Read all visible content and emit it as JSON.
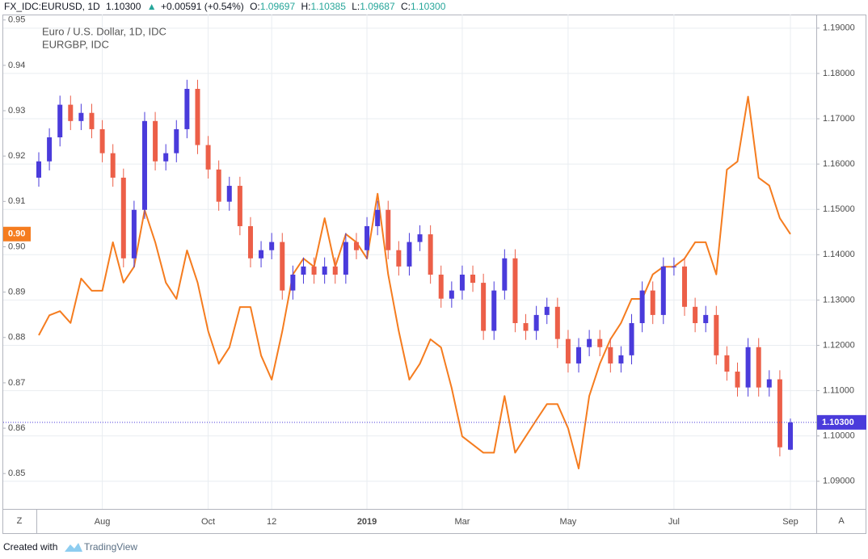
{
  "chart_data": {
    "type": "candlestick",
    "header": {
      "symbol": "FX_IDC:EURUSD, 1D",
      "last": "1.10300",
      "arrow": "▲",
      "change": "+0.00591 (+0.54%)",
      "ohlc": [
        {
          "label": "O:",
          "value": "1.09697"
        },
        {
          "label": "H:",
          "value": "1.10385"
        },
        {
          "label": "L:",
          "value": "1.09687"
        },
        {
          "label": "C:",
          "value": "1.10300"
        }
      ]
    },
    "categories": [
      null,
      null,
      null,
      null,
      null,
      null,
      "Aug",
      null,
      null,
      null,
      null,
      null,
      null,
      null,
      null,
      null,
      "Oct",
      null,
      null,
      null,
      null,
      null,
      "12",
      null,
      null,
      null,
      null,
      null,
      null,
      null,
      null,
      "2019",
      null,
      null,
      null,
      null,
      null,
      null,
      null,
      null,
      "Mar",
      null,
      null,
      null,
      null,
      null,
      null,
      null,
      null,
      null,
      "May",
      null,
      null,
      null,
      null,
      null,
      null,
      null,
      null,
      null,
      "Jul",
      null,
      null,
      null,
      null,
      null,
      null,
      null,
      null,
      null,
      null,
      "Sep"
    ],
    "series": [
      {
        "name": "Euro / U.S. Dollar, 1D, IDC",
        "axis": "y2",
        "up_color": "#4a3bdb",
        "down_color": "#ec5f48",
        "last_value_label": "1.10300",
        "open": [
          1.157,
          1.1606,
          1.1659,
          1.1731,
          1.1695,
          1.1713,
          1.1677,
          1.1624,
          1.157,
          1.1392,
          1.1499,
          1.1695,
          1.1606,
          1.1624,
          1.1677,
          1.1766,
          1.1642,
          1.1588,
          1.1517,
          1.1552,
          1.1463,
          1.1392,
          1.141,
          1.1428,
          1.1321,
          1.1356,
          1.1374,
          1.1356,
          1.1374,
          1.1356,
          1.1428,
          1.141,
          1.1463,
          1.1499,
          1.141,
          1.1374,
          1.1428,
          1.1445,
          1.1356,
          1.1303,
          1.1321,
          1.1356,
          1.1338,
          1.1232,
          1.1321,
          1.1392,
          1.1249,
          1.1232,
          1.1267,
          1.1285,
          1.1214,
          1.116,
          1.1196,
          1.1214,
          1.1196,
          1.116,
          1.1178,
          1.1249,
          1.1321,
          1.1267,
          1.1374,
          1.1374,
          1.1285,
          1.1249,
          1.1267,
          1.1178,
          1.1142,
          1.1107,
          1.1196,
          1.1107,
          1.1125,
          1.09697
        ],
        "high": [
          1.1626,
          1.1679,
          1.1751,
          1.1751,
          1.1733,
          1.1733,
          1.1697,
          1.1644,
          1.159,
          1.1519,
          1.1715,
          1.1715,
          1.1644,
          1.1697,
          1.1786,
          1.1786,
          1.1662,
          1.1608,
          1.1572,
          1.1572,
          1.1483,
          1.143,
          1.1448,
          1.1448,
          1.1376,
          1.1394,
          1.1394,
          1.1394,
          1.1394,
          1.1448,
          1.1448,
          1.1483,
          1.1519,
          1.1519,
          1.143,
          1.1448,
          1.1465,
          1.1465,
          1.1376,
          1.1341,
          1.1376,
          1.1376,
          1.1358,
          1.1341,
          1.1412,
          1.1412,
          1.1269,
          1.1287,
          1.1305,
          1.1305,
          1.1234,
          1.1216,
          1.1234,
          1.1234,
          1.1216,
          1.1198,
          1.1269,
          1.1341,
          1.1341,
          1.1394,
          1.1394,
          1.1394,
          1.1305,
          1.1287,
          1.1287,
          1.1198,
          1.1162,
          1.1216,
          1.1216,
          1.1145,
          1.1145,
          1.10385
        ],
        "low": [
          1.155,
          1.1586,
          1.1639,
          1.1675,
          1.1675,
          1.1657,
          1.1604,
          1.155,
          1.1372,
          1.1372,
          1.1479,
          1.1586,
          1.1586,
          1.1604,
          1.1657,
          1.1622,
          1.1568,
          1.1497,
          1.1497,
          1.1443,
          1.1372,
          1.1372,
          1.139,
          1.1301,
          1.1301,
          1.1336,
          1.1336,
          1.1336,
          1.1336,
          1.1336,
          1.139,
          1.139,
          1.1443,
          1.139,
          1.1354,
          1.1354,
          1.1408,
          1.1336,
          1.1283,
          1.1283,
          1.1301,
          1.1318,
          1.1212,
          1.1212,
          1.1301,
          1.1229,
          1.1212,
          1.1212,
          1.1247,
          1.1194,
          1.114,
          1.114,
          1.1176,
          1.1176,
          1.114,
          1.114,
          1.1158,
          1.1229,
          1.1247,
          1.1247,
          1.1354,
          1.1265,
          1.1229,
          1.1229,
          1.1158,
          1.1122,
          1.1087,
          1.1087,
          1.1087,
          1.1087,
          1.0955,
          1.09687
        ],
        "close": [
          1.1606,
          1.1659,
          1.1731,
          1.1695,
          1.1713,
          1.1677,
          1.1624,
          1.157,
          1.1392,
          1.1499,
          1.1695,
          1.1606,
          1.1624,
          1.1677,
          1.1766,
          1.1642,
          1.1588,
          1.1517,
          1.1552,
          1.1463,
          1.1392,
          1.141,
          1.1428,
          1.1321,
          1.1356,
          1.1374,
          1.1356,
          1.1374,
          1.1356,
          1.1428,
          1.141,
          1.1463,
          1.1499,
          1.141,
          1.1374,
          1.1428,
          1.1445,
          1.1356,
          1.1303,
          1.1321,
          1.1356,
          1.1338,
          1.1232,
          1.1321,
          1.1392,
          1.1249,
          1.1232,
          1.1267,
          1.1285,
          1.1214,
          1.116,
          1.1196,
          1.1214,
          1.1196,
          1.116,
          1.1178,
          1.1249,
          1.1321,
          1.1267,
          1.1374,
          1.1374,
          1.1285,
          1.1249,
          1.1267,
          1.1178,
          1.1142,
          1.1107,
          1.1196,
          1.1107,
          1.1125,
          1.0975,
          1.103
        ]
      },
      {
        "name": "EURGBP, IDC",
        "axis": "y",
        "color": "#f57c1f",
        "last_value_label": "0.90",
        "values": [
          0.8805,
          0.8849,
          0.8858,
          0.8832,
          0.893,
          0.8903,
          0.8903,
          0.901,
          0.8921,
          0.8956,
          0.9081,
          0.901,
          0.8921,
          0.8885,
          0.8992,
          0.8921,
          0.8814,
          0.8742,
          0.8778,
          0.8867,
          0.8867,
          0.876,
          0.8707,
          0.8814,
          0.8939,
          0.8974,
          0.8956,
          0.9063,
          0.8956,
          0.9028,
          0.901,
          0.8974,
          0.9117,
          0.8939,
          0.8814,
          0.8707,
          0.8742,
          0.8796,
          0.8778,
          0.8689,
          0.8582,
          0.8564,
          0.8546,
          0.8546,
          0.8671,
          0.8546,
          0.8582,
          0.8618,
          0.8653,
          0.8653,
          0.86,
          0.8511,
          0.8671,
          0.8742,
          0.8796,
          0.8832,
          0.8885,
          0.8885,
          0.8939,
          0.8956,
          0.8956,
          0.8974,
          0.901,
          0.901,
          0.8939,
          0.917,
          0.9188,
          0.9331,
          0.9152,
          0.9135,
          0.9063,
          0.9028
        ]
      }
    ],
    "ylim": [
      0.8422,
      0.9512
    ],
    "yticks": [
      {
        "value": 0.95,
        "label": "0.95"
      },
      {
        "value": 0.94,
        "label": "0.94"
      },
      {
        "value": 0.93,
        "label": "0.93"
      },
      {
        "value": 0.92,
        "label": "0.92"
      },
      {
        "value": 0.91,
        "label": "0.91"
      },
      {
        "value": 0.9,
        "label": "0.90"
      },
      {
        "value": 0.89,
        "label": "0.89"
      },
      {
        "value": 0.88,
        "label": "0.88"
      },
      {
        "value": 0.87,
        "label": "0.87"
      },
      {
        "value": 0.86,
        "label": "0.86"
      },
      {
        "value": 0.85,
        "label": "0.85"
      }
    ],
    "y2lim": [
      1.0839,
      1.193
    ],
    "y2ticks": [
      {
        "value": 1.19,
        "label": "1.19000"
      },
      {
        "value": 1.18,
        "label": "1.18000"
      },
      {
        "value": 1.17,
        "label": "1.17000"
      },
      {
        "value": 1.16,
        "label": "1.16000"
      },
      {
        "value": 1.15,
        "label": "1.15000"
      },
      {
        "value": 1.14,
        "label": "1.14000"
      },
      {
        "value": 1.13,
        "label": "1.13000"
      },
      {
        "value": 1.12,
        "label": "1.12000"
      },
      {
        "value": 1.11,
        "label": "1.11000"
      },
      {
        "value": 1.1,
        "label": "1.10000"
      },
      {
        "value": 1.09,
        "label": "1.09000"
      }
    ],
    "grid": true,
    "bold_categories": [
      "2019"
    ],
    "ui": {
      "zoom_button": "Z",
      "auto_button": "A"
    },
    "footer": {
      "created": "Created with",
      "brand": "TradingView"
    }
  }
}
